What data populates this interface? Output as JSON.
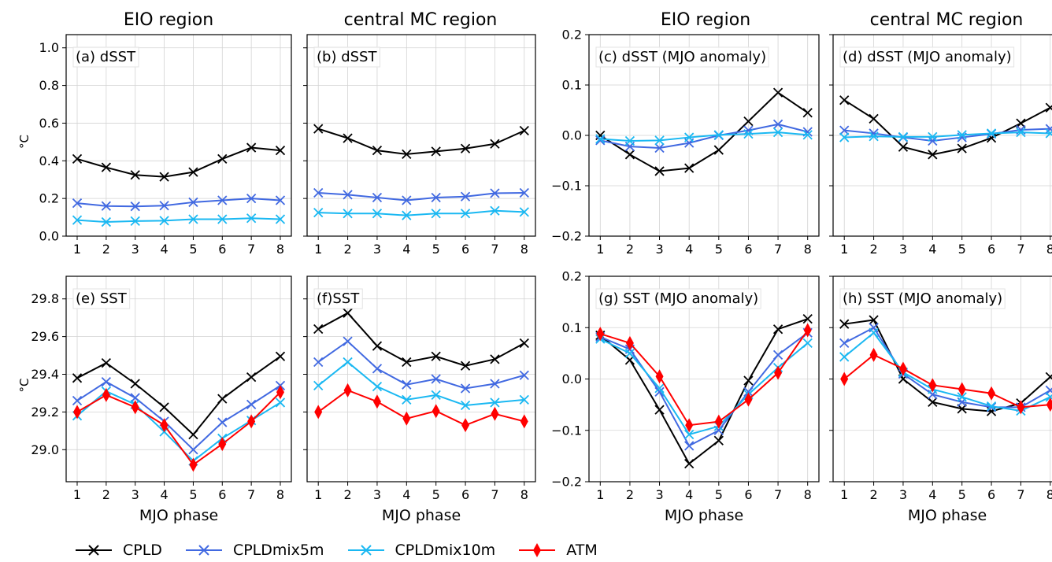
{
  "colors": {
    "CPLD": "#000000",
    "CPLDmix5m": "#4169e1",
    "CPLDmix10m": "#1ab8f2",
    "ATM": "#ff0000"
  },
  "legend": {
    "items": [
      "CPLD",
      "CPLDmix5m",
      "CPLDmix10m",
      "ATM"
    ]
  },
  "chart_data": [
    {
      "id": "a",
      "type": "line",
      "title": "EIO region",
      "label": "(a) dSST",
      "ylabel": "°C",
      "xlabel": "",
      "x": [
        1,
        2,
        3,
        4,
        5,
        6,
        7,
        8
      ],
      "ylim": [
        0,
        1.07
      ],
      "yticks": [
        "0.0",
        "0.2",
        "0.4",
        "0.6",
        "0.8",
        "1.0"
      ],
      "grid": true,
      "series": [
        {
          "name": "CPLD",
          "marker": "x",
          "values": [
            0.41,
            0.365,
            0.325,
            0.315,
            0.34,
            0.41,
            0.47,
            0.455
          ]
        },
        {
          "name": "CPLDmix5m",
          "marker": "x",
          "values": [
            0.175,
            0.16,
            0.158,
            0.162,
            0.18,
            0.19,
            0.2,
            0.19
          ]
        },
        {
          "name": "CPLDmix10m",
          "marker": "x",
          "values": [
            0.085,
            0.075,
            0.08,
            0.082,
            0.09,
            0.09,
            0.095,
            0.09
          ]
        }
      ]
    },
    {
      "id": "b",
      "type": "line",
      "title": "central MC region",
      "label": "(b) dSST",
      "ylabel": "",
      "xlabel": "",
      "x": [
        1,
        2,
        3,
        4,
        5,
        6,
        7,
        8
      ],
      "ylim": [
        0,
        1.07
      ],
      "yticks": [],
      "grid": true,
      "series": [
        {
          "name": "CPLD",
          "marker": "x",
          "values": [
            0.57,
            0.52,
            0.455,
            0.435,
            0.45,
            0.465,
            0.49,
            0.56
          ]
        },
        {
          "name": "CPLDmix5m",
          "marker": "x",
          "values": [
            0.23,
            0.22,
            0.205,
            0.19,
            0.205,
            0.21,
            0.228,
            0.23
          ]
        },
        {
          "name": "CPLDmix10m",
          "marker": "x",
          "values": [
            0.125,
            0.12,
            0.12,
            0.11,
            0.12,
            0.12,
            0.135,
            0.128
          ]
        }
      ]
    },
    {
      "id": "c",
      "type": "line",
      "title": "EIO region",
      "label": "(c) dSST (MJO anomaly)",
      "ylabel": "",
      "xlabel": "",
      "x": [
        1,
        2,
        3,
        4,
        5,
        6,
        7,
        8
      ],
      "ylim": [
        -0.2,
        0.2
      ],
      "yticks": [
        "−0.2",
        "−0.1",
        "0.0",
        "0.1",
        "0.2"
      ],
      "grid": true,
      "series": [
        {
          "name": "CPLD",
          "marker": "x",
          "values": [
            0.0,
            -0.038,
            -0.071,
            -0.065,
            -0.029,
            0.028,
            0.085,
            0.045
          ]
        },
        {
          "name": "CPLDmix5m",
          "marker": "x",
          "values": [
            -0.01,
            -0.022,
            -0.025,
            -0.015,
            0.0,
            0.01,
            0.022,
            0.007
          ]
        },
        {
          "name": "CPLDmix10m",
          "marker": "x",
          "values": [
            -0.007,
            -0.011,
            -0.01,
            -0.004,
            0.001,
            0.003,
            0.006,
            0.001
          ]
        }
      ]
    },
    {
      "id": "d",
      "type": "line",
      "title": "central MC region",
      "label": "(d) dSST (MJO anomaly)",
      "ylabel": "",
      "xlabel": "",
      "x": [
        1,
        2,
        3,
        4,
        5,
        6,
        7,
        8
      ],
      "ylim": [
        -0.2,
        0.2
      ],
      "yticks": [],
      "grid": true,
      "series": [
        {
          "name": "CPLD",
          "marker": "x",
          "values": [
            0.07,
            0.033,
            -0.023,
            -0.038,
            -0.026,
            -0.005,
            0.024,
            0.055
          ]
        },
        {
          "name": "CPLDmix5m",
          "marker": "x",
          "values": [
            0.01,
            0.004,
            -0.004,
            -0.011,
            -0.004,
            0.003,
            0.011,
            0.013
          ]
        },
        {
          "name": "CPLDmix10m",
          "marker": "x",
          "values": [
            -0.004,
            -0.002,
            -0.003,
            -0.003,
            0.001,
            0.004,
            0.006,
            0.004
          ]
        }
      ]
    },
    {
      "id": "e",
      "type": "line",
      "title": "",
      "label": "(e) SST",
      "ylabel": "°C",
      "xlabel": "MJO phase",
      "x": [
        1,
        2,
        3,
        4,
        5,
        6,
        7,
        8
      ],
      "ylim": [
        28.83,
        29.92
      ],
      "yticks": [
        "29.0",
        "29.2",
        "29.4",
        "29.6",
        "29.8"
      ],
      "grid": true,
      "series": [
        {
          "name": "CPLD",
          "marker": "x",
          "values": [
            29.38,
            29.46,
            29.35,
            29.225,
            29.08,
            29.27,
            29.385,
            29.495
          ]
        },
        {
          "name": "CPLDmix5m",
          "marker": "x",
          "values": [
            29.26,
            29.36,
            29.275,
            29.15,
            29.0,
            29.145,
            29.24,
            29.34
          ]
        },
        {
          "name": "CPLDmix10m",
          "marker": "x",
          "values": [
            29.18,
            29.31,
            29.24,
            29.095,
            28.94,
            29.06,
            29.155,
            29.25
          ]
        },
        {
          "name": "ATM",
          "marker": "diamond",
          "values": [
            29.2,
            29.29,
            29.225,
            29.13,
            28.92,
            29.03,
            29.15,
            29.305
          ]
        }
      ]
    },
    {
      "id": "f",
      "type": "line",
      "title": "",
      "label": "(f)SST",
      "ylabel": "",
      "xlabel": "MJO phase",
      "x": [
        1,
        2,
        3,
        4,
        5,
        6,
        7,
        8
      ],
      "ylim": [
        28.83,
        29.92
      ],
      "yticks": [],
      "grid": true,
      "series": [
        {
          "name": "CPLD",
          "marker": "x",
          "values": [
            29.64,
            29.725,
            29.55,
            29.465,
            29.495,
            29.445,
            29.48,
            29.565
          ]
        },
        {
          "name": "CPLDmix5m",
          "marker": "x",
          "values": [
            29.465,
            29.575,
            29.43,
            29.345,
            29.375,
            29.325,
            29.35,
            29.395
          ]
        },
        {
          "name": "CPLDmix10m",
          "marker": "x",
          "values": [
            29.34,
            29.465,
            29.335,
            29.265,
            29.29,
            29.235,
            29.25,
            29.265
          ]
        },
        {
          "name": "ATM",
          "marker": "diamond",
          "values": [
            29.2,
            29.315,
            29.255,
            29.165,
            29.205,
            29.13,
            29.19,
            29.15
          ]
        }
      ]
    },
    {
      "id": "g",
      "type": "line",
      "title": "",
      "label": "(g) SST (MJO anomaly)",
      "ylabel": "",
      "xlabel": "MJO phase",
      "x": [
        1,
        2,
        3,
        4,
        5,
        6,
        7,
        8
      ],
      "ylim": [
        -0.2,
        0.2
      ],
      "yticks": [
        "−0.2",
        "−0.1",
        "0.0",
        "0.1",
        "0.2"
      ],
      "grid": true,
      "series": [
        {
          "name": "CPLD",
          "marker": "x",
          "values": [
            0.085,
            0.037,
            -0.06,
            -0.165,
            -0.12,
            -0.003,
            0.097,
            0.117
          ]
        },
        {
          "name": "CPLDmix5m",
          "marker": "x",
          "values": [
            0.082,
            0.058,
            -0.025,
            -0.13,
            -0.1,
            -0.025,
            0.047,
            0.09
          ]
        },
        {
          "name": "CPLDmix10m",
          "marker": "x",
          "values": [
            0.078,
            0.05,
            -0.018,
            -0.108,
            -0.092,
            -0.03,
            0.022,
            0.07
          ]
        },
        {
          "name": "ATM",
          "marker": "diamond",
          "values": [
            0.088,
            0.07,
            0.005,
            -0.09,
            -0.083,
            -0.04,
            0.012,
            0.095
          ]
        }
      ]
    },
    {
      "id": "h",
      "type": "line",
      "title": "",
      "label": "(h) SST (MJO anomaly)",
      "ylabel": "",
      "xlabel": "MJO phase",
      "x": [
        1,
        2,
        3,
        4,
        5,
        6,
        7,
        8
      ],
      "ylim": [
        -0.2,
        0.2
      ],
      "yticks": [],
      "grid": true,
      "series": [
        {
          "name": "CPLD",
          "marker": "x",
          "values": [
            0.107,
            0.115,
            0.0,
            -0.045,
            -0.058,
            -0.063,
            -0.047,
            0.004
          ]
        },
        {
          "name": "CPLDmix5m",
          "marker": "x",
          "values": [
            0.07,
            0.1,
            0.01,
            -0.03,
            -0.045,
            -0.055,
            -0.055,
            -0.022
          ]
        },
        {
          "name": "CPLDmix10m",
          "marker": "x",
          "values": [
            0.043,
            0.09,
            0.013,
            -0.02,
            -0.035,
            -0.053,
            -0.062,
            -0.035
          ]
        },
        {
          "name": "ATM",
          "marker": "diamond",
          "values": [
            0.0,
            0.047,
            0.02,
            -0.012,
            -0.02,
            -0.028,
            -0.055,
            -0.05
          ]
        }
      ]
    }
  ]
}
